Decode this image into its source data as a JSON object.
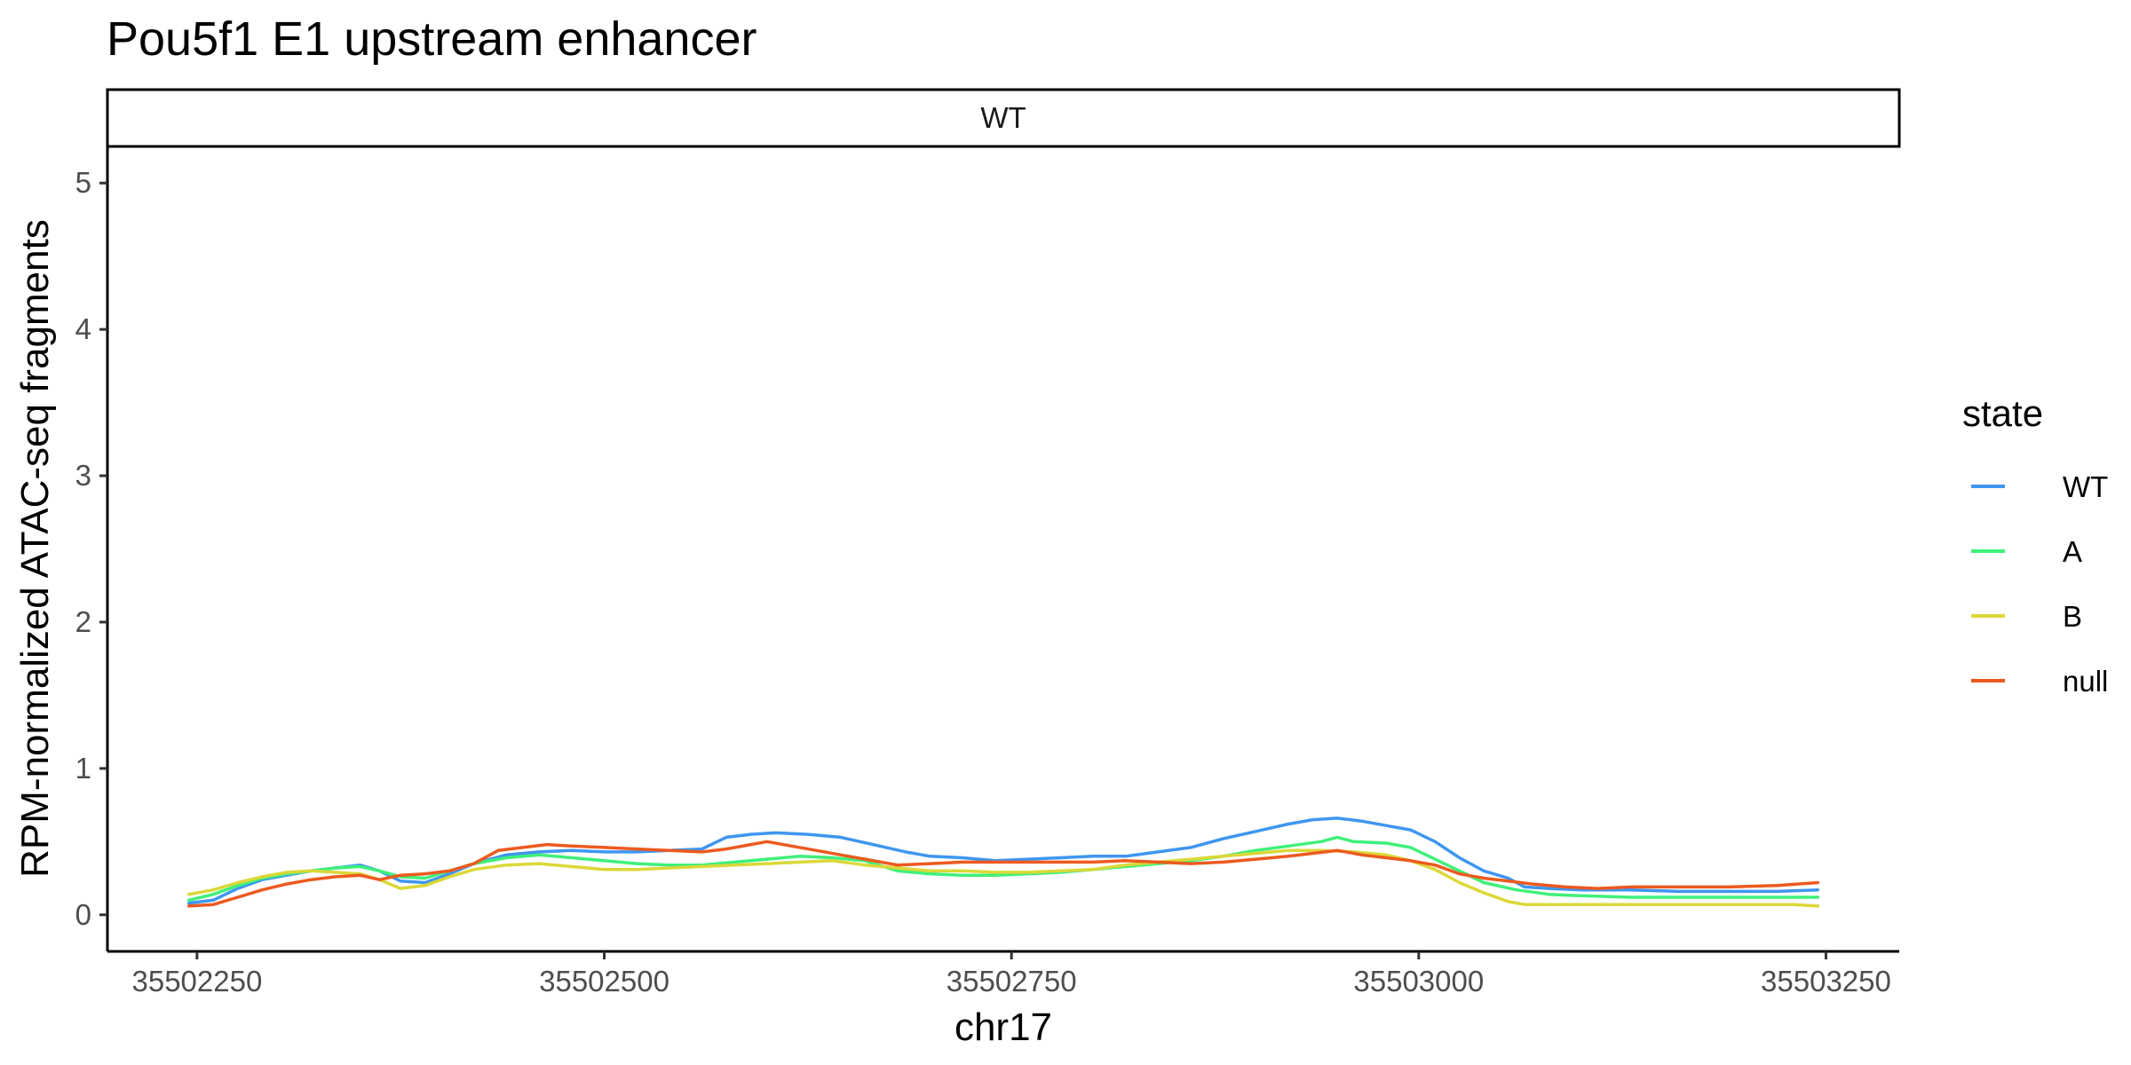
{
  "chart_data": {
    "type": "line",
    "title": "Pou5f1 E1 upstream enhancer",
    "facet_label": "WT",
    "xlabel": "chr17",
    "ylabel": "RPM-normalized ATAC-seq fragments",
    "xlim": [
      35502195,
      35503295
    ],
    "ylim": [
      -0.25,
      5.25
    ],
    "x_ticks": [
      35502250,
      35502500,
      35502750,
      35503000,
      35503250
    ],
    "y_ticks": [
      0,
      1,
      2,
      3,
      4,
      5
    ],
    "x_tick_labels": [
      "35502250",
      "35502500",
      "35502750",
      "35503000",
      "35503250"
    ],
    "y_tick_labels": [
      "0",
      "1",
      "2",
      "3",
      "4",
      "5"
    ],
    "legend": {
      "title": "state",
      "position": "right"
    },
    "grid": false,
    "series": [
      {
        "name": "WT",
        "color": "#3f96f0",
        "points": [
          [
            35502245,
            0.08
          ],
          [
            35502260,
            0.1
          ],
          [
            35502275,
            0.18
          ],
          [
            35502290,
            0.24
          ],
          [
            35502305,
            0.27
          ],
          [
            35502320,
            0.3
          ],
          [
            35502335,
            0.32
          ],
          [
            35502350,
            0.34
          ],
          [
            35502362,
            0.3
          ],
          [
            35502375,
            0.23
          ],
          [
            35502390,
            0.22
          ],
          [
            35502405,
            0.28
          ],
          [
            35502420,
            0.35
          ],
          [
            35502440,
            0.41
          ],
          [
            35502460,
            0.43
          ],
          [
            35502480,
            0.44
          ],
          [
            35502500,
            0.43
          ],
          [
            35502520,
            0.43
          ],
          [
            35502540,
            0.44
          ],
          [
            35502560,
            0.45
          ],
          [
            35502575,
            0.53
          ],
          [
            35502590,
            0.55
          ],
          [
            35502605,
            0.56
          ],
          [
            35502625,
            0.55
          ],
          [
            35502645,
            0.53
          ],
          [
            35502665,
            0.48
          ],
          [
            35502685,
            0.43
          ],
          [
            35502700,
            0.4
          ],
          [
            35502720,
            0.39
          ],
          [
            35502740,
            0.37
          ],
          [
            35502760,
            0.38
          ],
          [
            35502780,
            0.39
          ],
          [
            35502800,
            0.4
          ],
          [
            35502820,
            0.4
          ],
          [
            35502840,
            0.43
          ],
          [
            35502860,
            0.46
          ],
          [
            35502880,
            0.52
          ],
          [
            35502900,
            0.57
          ],
          [
            35502920,
            0.62
          ],
          [
            35502935,
            0.65
          ],
          [
            35502950,
            0.66
          ],
          [
            35502965,
            0.64
          ],
          [
            35502980,
            0.61
          ],
          [
            35502995,
            0.58
          ],
          [
            35503010,
            0.5
          ],
          [
            35503025,
            0.39
          ],
          [
            35503040,
            0.3
          ],
          [
            35503055,
            0.25
          ],
          [
            35503065,
            0.19
          ],
          [
            35503080,
            0.18
          ],
          [
            35503100,
            0.17
          ],
          [
            35503130,
            0.17
          ],
          [
            35503160,
            0.16
          ],
          [
            35503190,
            0.16
          ],
          [
            35503220,
            0.16
          ],
          [
            35503245,
            0.17
          ]
        ]
      },
      {
        "name": "A",
        "color": "#3ff07a",
        "points": [
          [
            35502245,
            0.1
          ],
          [
            35502260,
            0.14
          ],
          [
            35502275,
            0.2
          ],
          [
            35502290,
            0.25
          ],
          [
            35502305,
            0.28
          ],
          [
            35502320,
            0.3
          ],
          [
            35502335,
            0.32
          ],
          [
            35502350,
            0.33
          ],
          [
            35502362,
            0.3
          ],
          [
            35502375,
            0.26
          ],
          [
            35502390,
            0.25
          ],
          [
            35502405,
            0.3
          ],
          [
            35502420,
            0.35
          ],
          [
            35502440,
            0.39
          ],
          [
            35502460,
            0.41
          ],
          [
            35502480,
            0.39
          ],
          [
            35502500,
            0.37
          ],
          [
            35502520,
            0.35
          ],
          [
            35502540,
            0.34
          ],
          [
            35502560,
            0.34
          ],
          [
            35502580,
            0.36
          ],
          [
            35502600,
            0.38
          ],
          [
            35502620,
            0.4
          ],
          [
            35502640,
            0.39
          ],
          [
            35502660,
            0.37
          ],
          [
            35502680,
            0.3
          ],
          [
            35502700,
            0.28
          ],
          [
            35502720,
            0.27
          ],
          [
            35502740,
            0.27
          ],
          [
            35502760,
            0.28
          ],
          [
            35502780,
            0.29
          ],
          [
            35502800,
            0.31
          ],
          [
            35502820,
            0.33
          ],
          [
            35502840,
            0.35
          ],
          [
            35502860,
            0.37
          ],
          [
            35502880,
            0.4
          ],
          [
            35502900,
            0.44
          ],
          [
            35502920,
            0.47
          ],
          [
            35502940,
            0.5
          ],
          [
            35502950,
            0.53
          ],
          [
            35502960,
            0.5
          ],
          [
            35502980,
            0.49
          ],
          [
            35502995,
            0.46
          ],
          [
            35503010,
            0.38
          ],
          [
            35503025,
            0.3
          ],
          [
            35503040,
            0.22
          ],
          [
            35503060,
            0.17
          ],
          [
            35503080,
            0.14
          ],
          [
            35503100,
            0.13
          ],
          [
            35503130,
            0.12
          ],
          [
            35503160,
            0.12
          ],
          [
            35503190,
            0.12
          ],
          [
            35503220,
            0.12
          ],
          [
            35503245,
            0.12
          ]
        ]
      },
      {
        "name": "B",
        "color": "#dbd838",
        "points": [
          [
            35502245,
            0.14
          ],
          [
            35502260,
            0.17
          ],
          [
            35502275,
            0.22
          ],
          [
            35502290,
            0.26
          ],
          [
            35502305,
            0.29
          ],
          [
            35502320,
            0.3
          ],
          [
            35502335,
            0.29
          ],
          [
            35502350,
            0.28
          ],
          [
            35502362,
            0.24
          ],
          [
            35502375,
            0.18
          ],
          [
            35502390,
            0.2
          ],
          [
            35502405,
            0.26
          ],
          [
            35502420,
            0.31
          ],
          [
            35502440,
            0.34
          ],
          [
            35502460,
            0.35
          ],
          [
            35502480,
            0.33
          ],
          [
            35502500,
            0.31
          ],
          [
            35502520,
            0.31
          ],
          [
            35502540,
            0.32
          ],
          [
            35502560,
            0.33
          ],
          [
            35502580,
            0.34
          ],
          [
            35502600,
            0.35
          ],
          [
            35502620,
            0.36
          ],
          [
            35502640,
            0.37
          ],
          [
            35502660,
            0.34
          ],
          [
            35502680,
            0.32
          ],
          [
            35502700,
            0.3
          ],
          [
            35502720,
            0.3
          ],
          [
            35502740,
            0.29
          ],
          [
            35502760,
            0.29
          ],
          [
            35502780,
            0.3
          ],
          [
            35502800,
            0.31
          ],
          [
            35502820,
            0.34
          ],
          [
            35502840,
            0.36
          ],
          [
            35502860,
            0.38
          ],
          [
            35502880,
            0.4
          ],
          [
            35502900,
            0.42
          ],
          [
            35502920,
            0.44
          ],
          [
            35502940,
            0.44
          ],
          [
            35502960,
            0.43
          ],
          [
            35502980,
            0.41
          ],
          [
            35502995,
            0.37
          ],
          [
            35503010,
            0.31
          ],
          [
            35503025,
            0.22
          ],
          [
            35503040,
            0.15
          ],
          [
            35503055,
            0.09
          ],
          [
            35503065,
            0.07
          ],
          [
            35503090,
            0.07
          ],
          [
            35503120,
            0.07
          ],
          [
            35503150,
            0.07
          ],
          [
            35503180,
            0.07
          ],
          [
            35503210,
            0.07
          ],
          [
            35503230,
            0.07
          ],
          [
            35503245,
            0.06
          ]
        ]
      },
      {
        "name": "null",
        "color": "#ec5a1f",
        "points": [
          [
            35502245,
            0.06
          ],
          [
            35502260,
            0.07
          ],
          [
            35502275,
            0.12
          ],
          [
            35502290,
            0.17
          ],
          [
            35502305,
            0.21
          ],
          [
            35502320,
            0.24
          ],
          [
            35502335,
            0.26
          ],
          [
            35502350,
            0.27
          ],
          [
            35502362,
            0.24
          ],
          [
            35502375,
            0.27
          ],
          [
            35502390,
            0.28
          ],
          [
            35502405,
            0.3
          ],
          [
            35502420,
            0.35
          ],
          [
            35502435,
            0.44
          ],
          [
            35502450,
            0.46
          ],
          [
            35502465,
            0.48
          ],
          [
            35502480,
            0.47
          ],
          [
            35502500,
            0.46
          ],
          [
            35502520,
            0.45
          ],
          [
            35502540,
            0.44
          ],
          [
            35502560,
            0.43
          ],
          [
            35502575,
            0.45
          ],
          [
            35502590,
            0.48
          ],
          [
            35502600,
            0.5
          ],
          [
            35502615,
            0.47
          ],
          [
            35502630,
            0.44
          ],
          [
            35502645,
            0.41
          ],
          [
            35502660,
            0.38
          ],
          [
            35502680,
            0.34
          ],
          [
            35502700,
            0.35
          ],
          [
            35502720,
            0.36
          ],
          [
            35502740,
            0.36
          ],
          [
            35502760,
            0.36
          ],
          [
            35502780,
            0.36
          ],
          [
            35502800,
            0.36
          ],
          [
            35502820,
            0.37
          ],
          [
            35502840,
            0.36
          ],
          [
            35502860,
            0.35
          ],
          [
            35502880,
            0.36
          ],
          [
            35502900,
            0.38
          ],
          [
            35502920,
            0.4
          ],
          [
            35502935,
            0.42
          ],
          [
            35502950,
            0.44
          ],
          [
            35502965,
            0.41
          ],
          [
            35502980,
            0.39
          ],
          [
            35502995,
            0.37
          ],
          [
            35503010,
            0.34
          ],
          [
            35503025,
            0.28
          ],
          [
            35503040,
            0.25
          ],
          [
            35503055,
            0.23
          ],
          [
            35503070,
            0.21
          ],
          [
            35503090,
            0.19
          ],
          [
            35503110,
            0.18
          ],
          [
            35503130,
            0.19
          ],
          [
            35503160,
            0.19
          ],
          [
            35503190,
            0.19
          ],
          [
            35503220,
            0.2
          ],
          [
            35503245,
            0.22
          ]
        ]
      }
    ]
  }
}
